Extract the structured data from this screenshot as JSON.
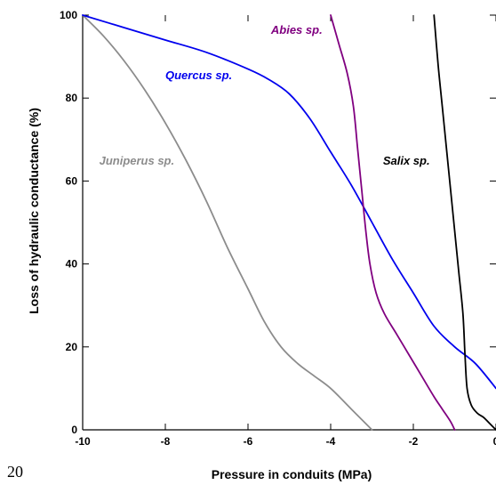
{
  "page_number": "20",
  "chart_data": {
    "type": "line",
    "title": "",
    "xlabel": "Pressure in conduits (MPa)",
    "ylabel": "Loss of hydraulic conductance (%)",
    "xlim": [
      -10,
      0
    ],
    "ylim": [
      0,
      100
    ],
    "xticks": [
      -10,
      -8,
      -6,
      -4,
      -2,
      0
    ],
    "yticks": [
      0,
      20,
      40,
      60,
      80,
      100
    ],
    "grid": false,
    "legend": "none (series labelled directly on the curves)",
    "series": [
      {
        "name": "Juniperus sp.",
        "color": "#8c8c8c",
        "x": [
          -10,
          -9.5,
          -9,
          -8.5,
          -8,
          -7.5,
          -7,
          -6.5,
          -6,
          -5.6,
          -5.2,
          -4.8,
          -4.4,
          -4,
          -3.5,
          -3
        ],
        "y": [
          100,
          95,
          89,
          82,
          74,
          65,
          55,
          44,
          34,
          26,
          20,
          16,
          13,
          10,
          5,
          0
        ]
      },
      {
        "name": "Quercus sp.",
        "color": "#0000ee",
        "x": [
          -10,
          -9,
          -8,
          -7,
          -6,
          -5.5,
          -5,
          -4.5,
          -4,
          -3.5,
          -3,
          -2.5,
          -2,
          -1.5,
          -1,
          -0.5,
          0
        ],
        "y": [
          100,
          97,
          94,
          91,
          87,
          84.5,
          81,
          75,
          67,
          59,
          50,
          41,
          33,
          25,
          20,
          16,
          10
        ]
      },
      {
        "name": "Abies sp.",
        "color": "#800080",
        "x": [
          -4,
          -3.8,
          -3.6,
          -3.45,
          -3.35,
          -3.25,
          -3.15,
          -3.05,
          -2.9,
          -2.7,
          -2.4,
          -2.1,
          -1.8,
          -1.5,
          -1.3,
          -1.1,
          -1
        ],
        "y": [
          100,
          93,
          86,
          78,
          68,
          58,
          48,
          40,
          33,
          28,
          23,
          18,
          13,
          8,
          5,
          2,
          0
        ]
      },
      {
        "name": "Salix sp.",
        "color": "#000000",
        "x": [
          -1.5,
          -1.4,
          -1.3,
          -1.2,
          -1.1,
          -1,
          -0.9,
          -0.8,
          -0.75,
          -0.7,
          -0.6,
          -0.45,
          -0.3,
          -0.15,
          0
        ],
        "y": [
          100,
          88,
          78,
          68,
          58,
          48,
          38,
          28,
          18,
          10,
          6,
          4,
          3,
          1.5,
          0
        ]
      }
    ],
    "annotations": [
      {
        "text": "Juniperus sp.",
        "series": "Juniperus sp."
      },
      {
        "text": "Quercus sp.",
        "series": "Quercus sp."
      },
      {
        "text": "Abies sp.",
        "series": "Abies sp."
      },
      {
        "text": "Salix sp.",
        "series": "Salix sp."
      }
    ]
  }
}
